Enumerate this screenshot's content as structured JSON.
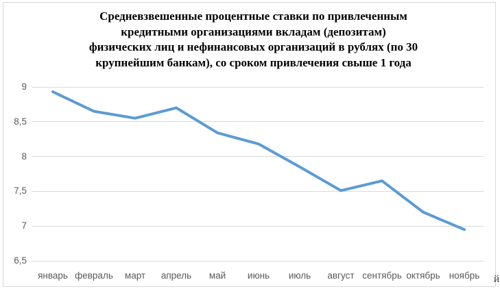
{
  "document": {
    "stray_text": "й"
  },
  "chart_data": {
    "type": "line",
    "title": "Средневзвешенные процентные ставки по привлеченным кредитными организациями вкладам (депозитам) физических лиц и нефинансовых организаций в рублях (по 30 крупнейшим банкам), со сроком привлечения свыше 1 года",
    "title_lines": [
      "Средневзвешенные процентные ставки по привлеченным",
      "кредитными организациями вкладам (депозитам)",
      "физических лиц и нефинансовых организаций в рублях (по 30",
      "крупнейшим банкам), со сроком привлечения свыше 1 года"
    ],
    "categories": [
      "январь",
      "февраль",
      "март",
      "апрель",
      "май",
      "июнь",
      "июль",
      "август",
      "сентябрь",
      "октябрь",
      "ноябрь"
    ],
    "values": [
      8.93,
      8.65,
      8.55,
      8.7,
      8.34,
      8.18,
      7.85,
      7.51,
      7.65,
      7.2,
      6.95
    ],
    "xlabel": "",
    "ylabel": "",
    "ylim": [
      6.5,
      9
    ],
    "yticks": [
      {
        "label": "9",
        "value": 9
      },
      {
        "label": "8,5",
        "value": 8.5
      },
      {
        "label": "8",
        "value": 8
      },
      {
        "label": "7,5",
        "value": 7.5
      },
      {
        "label": "7",
        "value": 7
      },
      {
        "label": "6,5",
        "value": 6.5
      }
    ],
    "grid": true,
    "legend": "none",
    "colors": {
      "series_line": "#5B9BD5",
      "gridline": "#D9D9D9",
      "axis_label": "#595959",
      "title": "#000000",
      "chart_border": "#D7D7D7"
    }
  }
}
